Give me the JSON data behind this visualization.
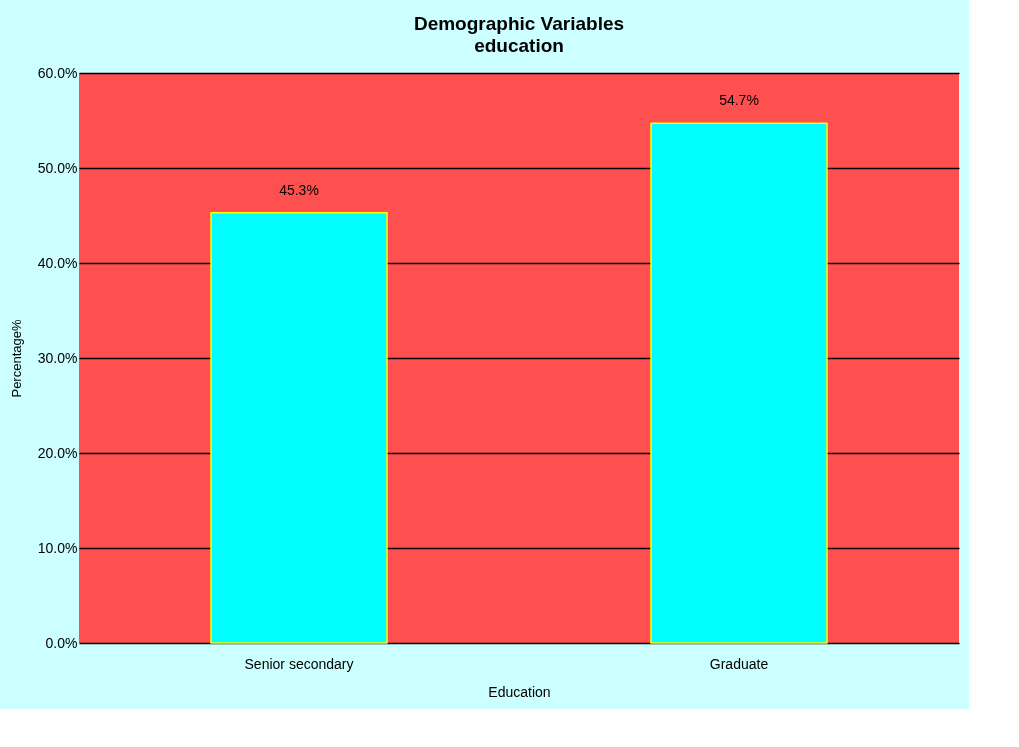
{
  "chart_data": {
    "type": "bar",
    "title": "Demographic Variables",
    "subtitle": "education",
    "xlabel": "Education",
    "ylabel": "Percentage%",
    "categories": [
      "Senior secondary",
      "Graduate"
    ],
    "values": [
      45.3,
      54.7
    ],
    "color": "#00ffff",
    "value_labels": [
      "45.3%",
      "54.7%"
    ],
    "ylim": [
      0,
      60
    ],
    "yticks": [
      {
        "value": 0,
        "label": "0.0%"
      },
      {
        "value": 10,
        "label": "10.0%"
      },
      {
        "value": 20,
        "label": "20.0%"
      },
      {
        "value": 30,
        "label": "30.0%"
      },
      {
        "value": 40,
        "label": "40.0%"
      },
      {
        "value": 50,
        "label": "50.0%"
      },
      {
        "value": 60,
        "label": "60.0%"
      }
    ],
    "grid": "y"
  }
}
